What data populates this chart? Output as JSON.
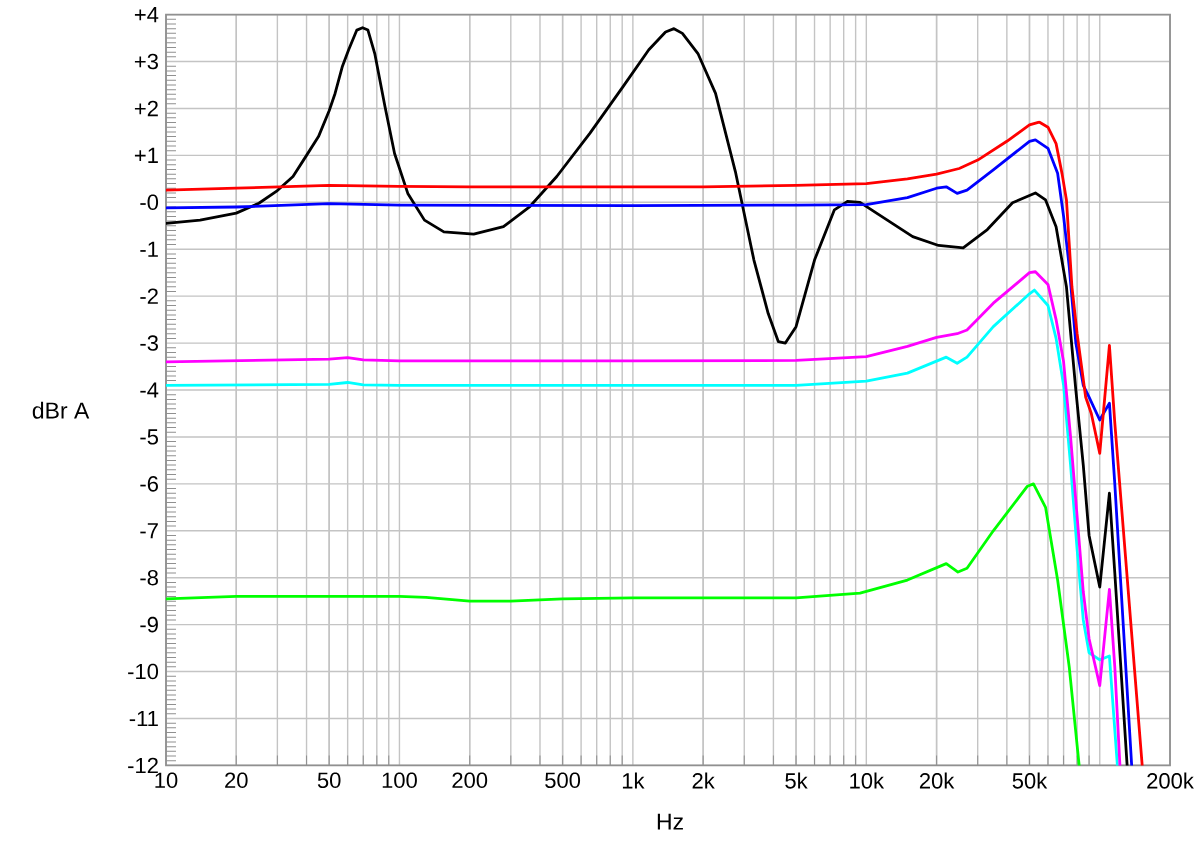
{
  "chart_data": {
    "type": "line",
    "xlabel": "Hz",
    "ylabel": "dBr A",
    "log": "x",
    "grid": true,
    "xlim": [
      10,
      200000
    ],
    "ylim": [
      -12,
      4
    ],
    "xticks": [
      10,
      20,
      50,
      100,
      200,
      500,
      {
        "value": 1000,
        "label": "1k"
      },
      {
        "value": 2000,
        "label": "2k"
      },
      {
        "value": 5000,
        "label": "5k"
      },
      {
        "value": 10000,
        "label": "10k"
      },
      {
        "value": 20000,
        "label": "20k"
      },
      {
        "value": 50000,
        "label": "50k"
      },
      {
        "value": 100000,
        "label": null
      },
      {
        "value": 200000,
        "label": "200k"
      }
    ],
    "yticks": [
      -12,
      -11,
      -10,
      -9,
      -8,
      -7,
      -6,
      -5,
      -4,
      -3,
      -2,
      -1,
      {
        "value": 0,
        "label": "-0"
      },
      {
        "value": 1,
        "label": "+1"
      },
      {
        "value": 2,
        "label": "+2"
      },
      {
        "value": 3,
        "label": "+3"
      },
      {
        "value": 4,
        "label": "+4"
      }
    ],
    "series": [
      {
        "color": "#00ff00",
        "x": [
          10,
          20,
          50,
          100,
          130,
          200,
          300,
          500,
          1000,
          5000,
          9400,
          15000,
          22000,
          24700,
          27000,
          35000,
          49000,
          52000,
          58600,
          66000,
          74000,
          81600
        ],
        "values": [
          -8.45,
          -8.4,
          -8.4,
          -8.4,
          -8.42,
          -8.5,
          -8.5,
          -8.45,
          -8.43,
          -8.43,
          -8.33,
          -8.05,
          -7.7,
          -7.88,
          -7.8,
          -7.0,
          -6.05,
          -6.0,
          -6.5,
          -8.05,
          -9.9,
          -12
        ]
      },
      {
        "color": "#00ffff",
        "x": [
          10,
          50,
          60,
          70,
          100,
          1000,
          5000,
          10000,
          15000,
          22000,
          24500,
          27000,
          35000,
          50000,
          52500,
          60000,
          65000,
          70000,
          75000,
          80000,
          85000,
          90000,
          100000,
          110000,
          119000
        ],
        "values": [
          -3.9,
          -3.88,
          -3.84,
          -3.89,
          -3.9,
          -3.9,
          -3.9,
          -3.81,
          -3.64,
          -3.3,
          -3.43,
          -3.3,
          -2.65,
          -1.95,
          -1.87,
          -2.2,
          -2.9,
          -3.9,
          -5.6,
          -7.4,
          -8.9,
          -9.6,
          -9.75,
          -9.67,
          -12
        ]
      },
      {
        "color": "#ff00ff",
        "x": [
          10,
          50,
          60,
          70,
          100,
          1000,
          5000,
          10000,
          15000,
          20000,
          24500,
          27000,
          35000,
          50000,
          53000,
          60000,
          65000,
          70000,
          75000,
          80000,
          85000,
          90000,
          100000,
          110000,
          116000,
          122000
        ],
        "values": [
          -3.4,
          -3.34,
          -3.31,
          -3.36,
          -3.38,
          -3.38,
          -3.37,
          -3.29,
          -3.07,
          -2.88,
          -2.8,
          -2.72,
          -2.15,
          -1.5,
          -1.48,
          -1.75,
          -2.5,
          -3.4,
          -5.0,
          -6.7,
          -8.3,
          -9.3,
          -10.3,
          -8.25,
          -9.9,
          -12
        ]
      },
      {
        "color": "#000000",
        "x": [
          10,
          14,
          20,
          25,
          30,
          35,
          40,
          45,
          50,
          53,
          57,
          60.6,
          65.7,
          69.5,
          73.3,
          78.4,
          86.7,
          95.3,
          108.6,
          128,
          155,
          208,
          279,
          362,
          472,
          654,
          906,
          1170,
          1380,
          1500,
          1630,
          1900,
          2260,
          2750,
          3300,
          3800,
          4200,
          4500,
          5000,
          6000,
          7300,
          8300,
          9400,
          12300,
          15800,
          20400,
          26000,
          33000,
          42300,
          53000,
          58600,
          65000,
          72000,
          79000,
          85000,
          90000,
          100000,
          110000,
          116000,
          131000
        ],
        "values": [
          -0.45,
          -0.38,
          -0.23,
          -0.02,
          0.25,
          0.55,
          1.0,
          1.4,
          1.95,
          2.32,
          2.9,
          3.25,
          3.67,
          3.72,
          3.67,
          3.17,
          2.04,
          1.04,
          0.19,
          -0.38,
          -0.63,
          -0.68,
          -0.52,
          -0.09,
          0.55,
          1.47,
          2.46,
          3.25,
          3.63,
          3.7,
          3.6,
          3.17,
          2.32,
          0.65,
          -1.23,
          -2.37,
          -2.97,
          -3.0,
          -2.65,
          -1.23,
          -0.16,
          0.02,
          0.0,
          -0.38,
          -0.73,
          -0.92,
          -0.97,
          -0.58,
          -0.01,
          0.2,
          0.05,
          -0.52,
          -1.8,
          -4.0,
          -5.6,
          -7.1,
          -8.2,
          -6.2,
          -7.9,
          -12
        ]
      },
      {
        "color": "#0000ff",
        "x": [
          10,
          20,
          50,
          100,
          1000,
          5000,
          10000,
          15000,
          20000,
          22000,
          24500,
          27000,
          35000,
          50000,
          53000,
          60000,
          66000,
          70000,
          74000,
          79000,
          85000,
          90000,
          100000,
          110000,
          116000,
          137000
        ],
        "values": [
          -0.12,
          -0.1,
          -0.03,
          -0.06,
          -0.07,
          -0.06,
          -0.05,
          0.1,
          0.3,
          0.33,
          0.19,
          0.26,
          0.69,
          1.3,
          1.33,
          1.15,
          0.62,
          -0.3,
          -1.37,
          -3.0,
          -3.9,
          -4.15,
          -4.64,
          -4.28,
          -6.0,
          -12
        ]
      },
      {
        "color": "#ff0000",
        "x": [
          10,
          20,
          50,
          100,
          200,
          500,
          1000,
          2000,
          5000,
          10000,
          15000,
          20000,
          25000,
          30000,
          40000,
          50000,
          55000,
          60000,
          65000,
          69000,
          72000,
          76000,
          80000,
          87000,
          92000,
          100000,
          110000,
          116000,
          152000
        ],
        "values": [
          0.26,
          0.3,
          0.36,
          0.34,
          0.33,
          0.33,
          0.33,
          0.33,
          0.36,
          0.4,
          0.5,
          0.6,
          0.72,
          0.9,
          1.3,
          1.65,
          1.71,
          1.6,
          1.25,
          0.6,
          0.05,
          -1.8,
          -2.8,
          -4.15,
          -4.5,
          -5.35,
          -3.05,
          -4.7,
          -12
        ]
      }
    ]
  }
}
